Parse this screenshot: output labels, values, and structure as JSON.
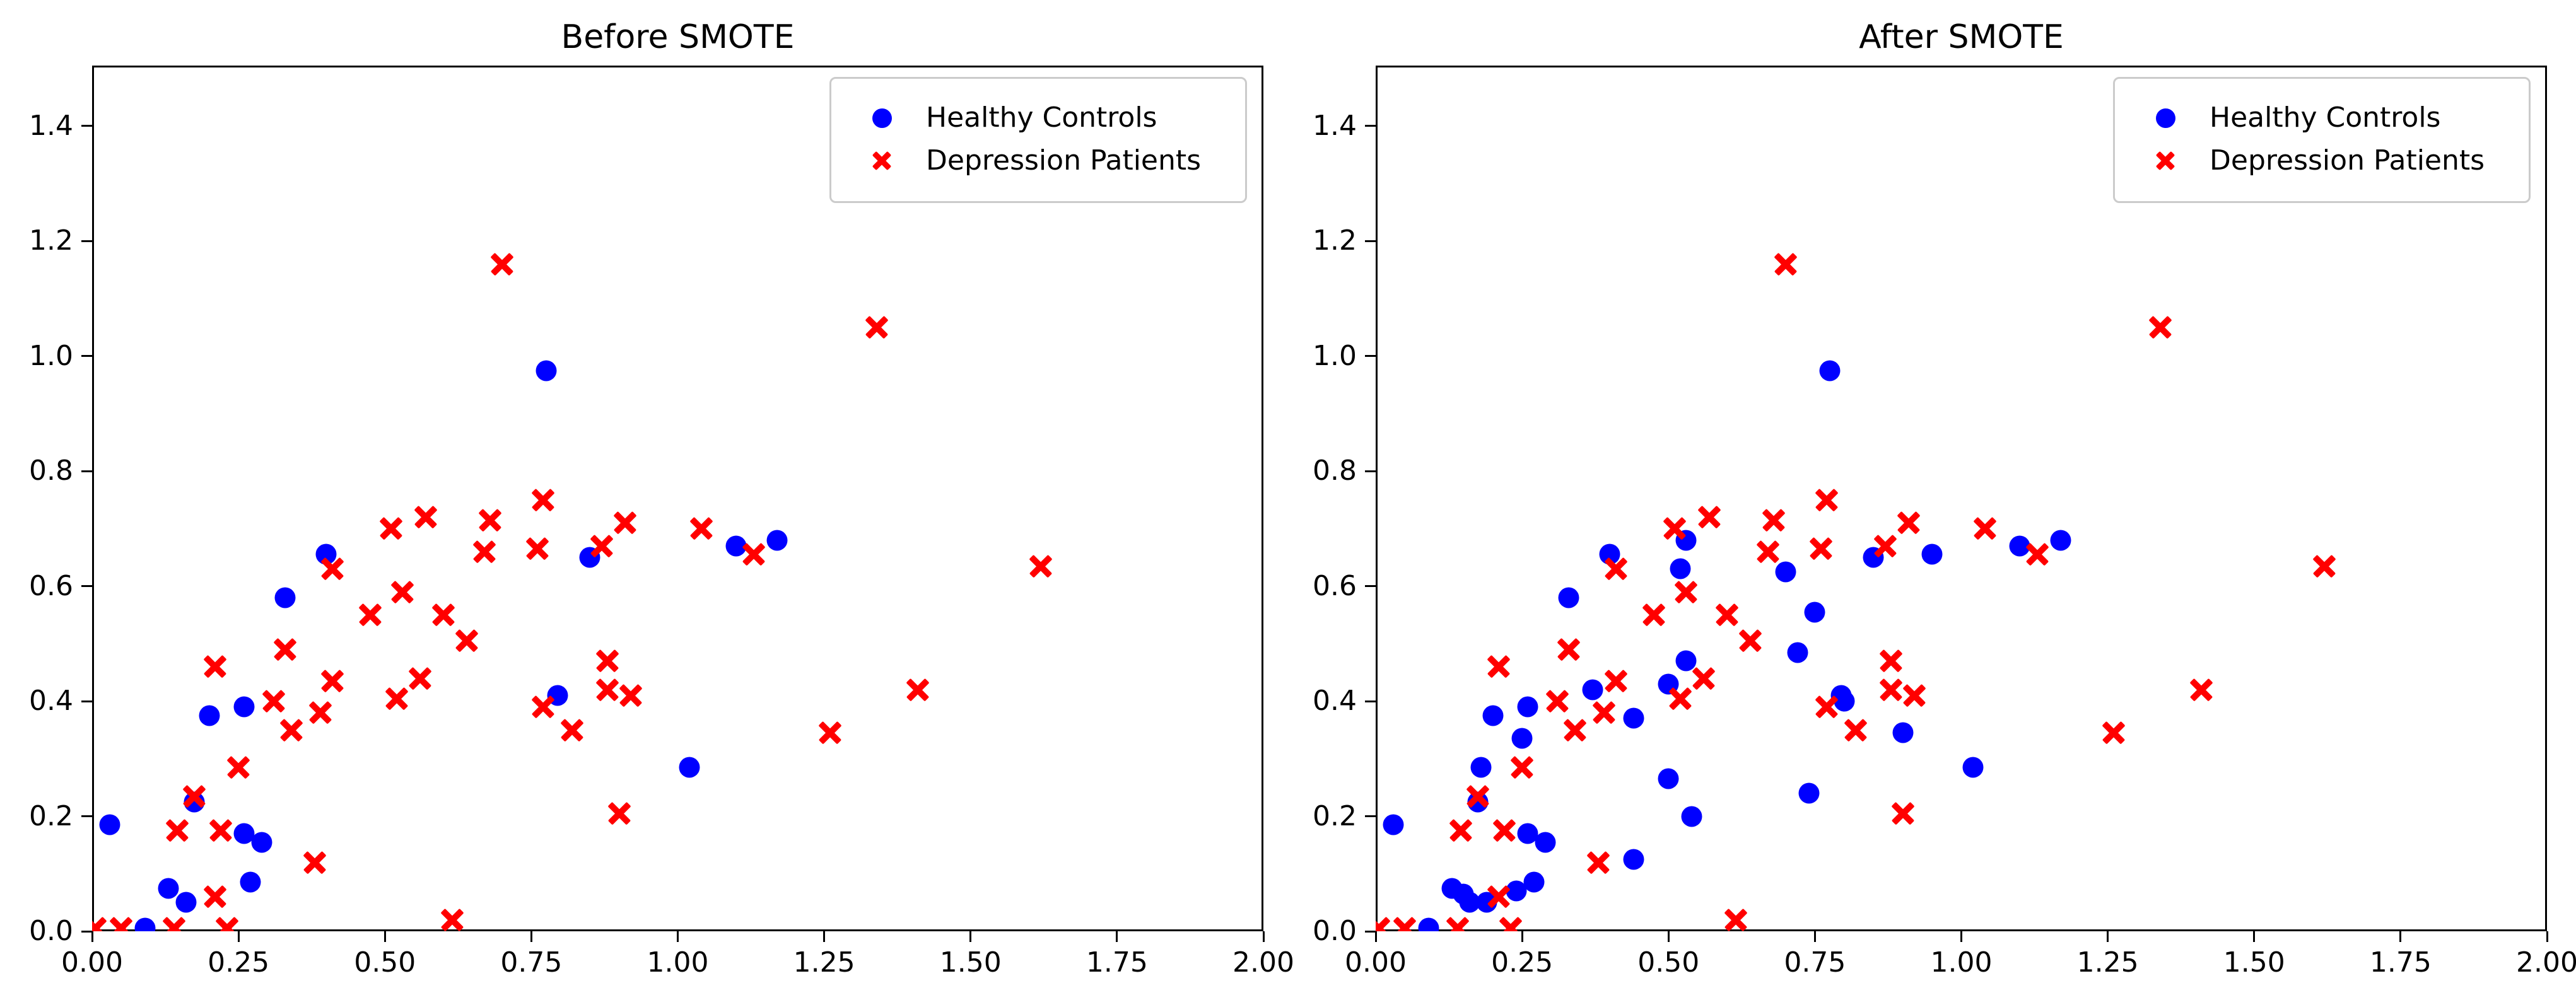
{
  "figure": {
    "background": "#ffffff",
    "marker_colors": {
      "healthy": "#0000ff",
      "depression": "#ff0000"
    }
  },
  "chart_data": [
    {
      "type": "scatter",
      "title": "Before SMOTE",
      "xlim": [
        0,
        2.0
      ],
      "ylim": [
        0,
        1.505
      ],
      "grid": false,
      "legend_position": "upper right",
      "x_tick_values": [
        0,
        0.25,
        0.5,
        0.75,
        1.0,
        1.25,
        1.5,
        1.75,
        2.0
      ],
      "x_tick_labels": [
        "0.00",
        "0.25",
        "0.50",
        "0.75",
        "1.00",
        "1.25",
        "1.50",
        "1.75",
        "2.00"
      ],
      "y_tick_values": [
        0,
        0.2,
        0.4,
        0.6,
        0.8,
        1.0,
        1.2,
        1.4
      ],
      "y_tick_labels": [
        "0.0",
        "0.2",
        "0.4",
        "0.6",
        "0.8",
        "1.0",
        "1.2",
        "1.4"
      ],
      "series": [
        {
          "name": "Healthy Controls",
          "marker": "circle",
          "color": "#0000ff",
          "points": [
            [
              0.03,
              0.185
            ],
            [
              0.09,
              0.005
            ],
            [
              0.13,
              0.075
            ],
            [
              0.16,
              0.05
            ],
            [
              0.175,
              0.225
            ],
            [
              0.2,
              0.375
            ],
            [
              0.26,
              0.39
            ],
            [
              0.26,
              0.17
            ],
            [
              0.29,
              0.155
            ],
            [
              0.27,
              0.085
            ],
            [
              0.33,
              0.58
            ],
            [
              0.4,
              0.655
            ],
            [
              0.775,
              0.975
            ],
            [
              0.795,
              0.41
            ],
            [
              0.85,
              0.65
            ],
            [
              1.02,
              0.285
            ],
            [
              1.1,
              0.67
            ],
            [
              1.17,
              0.68
            ]
          ]
        },
        {
          "name": "Depression Patients",
          "marker": "x",
          "color": "#ff0000",
          "points": [
            [
              0.7,
              1.16
            ],
            [
              1.34,
              1.05
            ],
            [
              0.77,
              0.75
            ],
            [
              0.57,
              0.72
            ],
            [
              0.68,
              0.715
            ],
            [
              0.51,
              0.7
            ],
            [
              0.91,
              0.71
            ],
            [
              1.04,
              0.7
            ],
            [
              0.87,
              0.67
            ],
            [
              0.67,
              0.66
            ],
            [
              0.76,
              0.665
            ],
            [
              1.13,
              0.655
            ],
            [
              1.62,
              0.635
            ],
            [
              0.41,
              0.63
            ],
            [
              0.53,
              0.59
            ],
            [
              0.475,
              0.55
            ],
            [
              0.6,
              0.55
            ],
            [
              0.64,
              0.505
            ],
            [
              0.33,
              0.49
            ],
            [
              0.21,
              0.46
            ],
            [
              0.88,
              0.47
            ],
            [
              0.41,
              0.435
            ],
            [
              0.56,
              0.44
            ],
            [
              0.88,
              0.42
            ],
            [
              0.92,
              0.41
            ],
            [
              1.41,
              0.42
            ],
            [
              0.52,
              0.405
            ],
            [
              0.39,
              0.38
            ],
            [
              0.77,
              0.39
            ],
            [
              0.31,
              0.4
            ],
            [
              0.34,
              0.35
            ],
            [
              0.82,
              0.35
            ],
            [
              1.26,
              0.345
            ],
            [
              0.9,
              0.205
            ],
            [
              0.175,
              0.235
            ],
            [
              0.25,
              0.285
            ],
            [
              0.145,
              0.175
            ],
            [
              0.22,
              0.175
            ],
            [
              0.38,
              0.12
            ],
            [
              0.21,
              0.06
            ],
            [
              0.615,
              0.02
            ],
            [
              0.005,
              0.005
            ],
            [
              0.05,
              0.005
            ],
            [
              0.14,
              0.005
            ],
            [
              0.23,
              0.005
            ]
          ]
        }
      ]
    },
    {
      "type": "scatter",
      "title": "After SMOTE",
      "xlim": [
        0,
        2.0
      ],
      "ylim": [
        0,
        1.505
      ],
      "grid": false,
      "legend_position": "upper right",
      "x_tick_values": [
        0,
        0.25,
        0.5,
        0.75,
        1.0,
        1.25,
        1.5,
        1.75,
        2.0
      ],
      "x_tick_labels": [
        "0.00",
        "0.25",
        "0.50",
        "0.75",
        "1.00",
        "1.25",
        "1.50",
        "1.75",
        "2.00"
      ],
      "y_tick_values": [
        0,
        0.2,
        0.4,
        0.6,
        0.8,
        1.0,
        1.2,
        1.4
      ],
      "y_tick_labels": [
        "0.0",
        "0.2",
        "0.4",
        "0.6",
        "0.8",
        "1.0",
        "1.2",
        "1.4"
      ],
      "series": [
        {
          "name": "Healthy Controls",
          "marker": "circle",
          "color": "#0000ff",
          "points": [
            [
              0.03,
              0.185
            ],
            [
              0.09,
              0.005
            ],
            [
              0.13,
              0.075
            ],
            [
              0.16,
              0.05
            ],
            [
              0.175,
              0.225
            ],
            [
              0.2,
              0.375
            ],
            [
              0.26,
              0.39
            ],
            [
              0.26,
              0.17
            ],
            [
              0.29,
              0.155
            ],
            [
              0.27,
              0.085
            ],
            [
              0.33,
              0.58
            ],
            [
              0.4,
              0.655
            ],
            [
              0.775,
              0.975
            ],
            [
              0.795,
              0.41
            ],
            [
              0.85,
              0.65
            ],
            [
              1.02,
              0.285
            ],
            [
              1.1,
              0.67
            ],
            [
              1.17,
              0.68
            ],
            [
              0.18,
              0.285
            ],
            [
              0.25,
              0.335
            ],
            [
              0.24,
              0.07
            ],
            [
              0.15,
              0.065
            ],
            [
              0.19,
              0.05
            ],
            [
              0.44,
              0.125
            ],
            [
              0.5,
              0.265
            ],
            [
              0.54,
              0.2
            ],
            [
              0.74,
              0.24
            ],
            [
              0.37,
              0.42
            ],
            [
              0.44,
              0.37
            ],
            [
              0.5,
              0.43
            ],
            [
              0.53,
              0.47
            ],
            [
              0.53,
              0.68
            ],
            [
              0.52,
              0.63
            ],
            [
              0.7,
              0.625
            ],
            [
              0.72,
              0.485
            ],
            [
              0.75,
              0.555
            ],
            [
              0.9,
              0.345
            ],
            [
              0.95,
              0.655
            ],
            [
              0.8,
              0.4
            ]
          ]
        },
        {
          "name": "Depression Patients",
          "marker": "x",
          "color": "#ff0000",
          "points": [
            [
              0.7,
              1.16
            ],
            [
              1.34,
              1.05
            ],
            [
              0.77,
              0.75
            ],
            [
              0.57,
              0.72
            ],
            [
              0.68,
              0.715
            ],
            [
              0.51,
              0.7
            ],
            [
              0.91,
              0.71
            ],
            [
              1.04,
              0.7
            ],
            [
              0.87,
              0.67
            ],
            [
              0.67,
              0.66
            ],
            [
              0.76,
              0.665
            ],
            [
              1.13,
              0.655
            ],
            [
              1.62,
              0.635
            ],
            [
              0.41,
              0.63
            ],
            [
              0.53,
              0.59
            ],
            [
              0.475,
              0.55
            ],
            [
              0.6,
              0.55
            ],
            [
              0.64,
              0.505
            ],
            [
              0.33,
              0.49
            ],
            [
              0.21,
              0.46
            ],
            [
              0.88,
              0.47
            ],
            [
              0.41,
              0.435
            ],
            [
              0.56,
              0.44
            ],
            [
              0.88,
              0.42
            ],
            [
              0.92,
              0.41
            ],
            [
              1.41,
              0.42
            ],
            [
              0.52,
              0.405
            ],
            [
              0.39,
              0.38
            ],
            [
              0.77,
              0.39
            ],
            [
              0.31,
              0.4
            ],
            [
              0.34,
              0.35
            ],
            [
              0.82,
              0.35
            ],
            [
              1.26,
              0.345
            ],
            [
              0.9,
              0.205
            ],
            [
              0.175,
              0.235
            ],
            [
              0.25,
              0.285
            ],
            [
              0.145,
              0.175
            ],
            [
              0.22,
              0.175
            ],
            [
              0.38,
              0.12
            ],
            [
              0.21,
              0.06
            ],
            [
              0.615,
              0.02
            ],
            [
              0.005,
              0.005
            ],
            [
              0.05,
              0.005
            ],
            [
              0.14,
              0.005
            ],
            [
              0.23,
              0.005
            ]
          ]
        }
      ]
    }
  ]
}
